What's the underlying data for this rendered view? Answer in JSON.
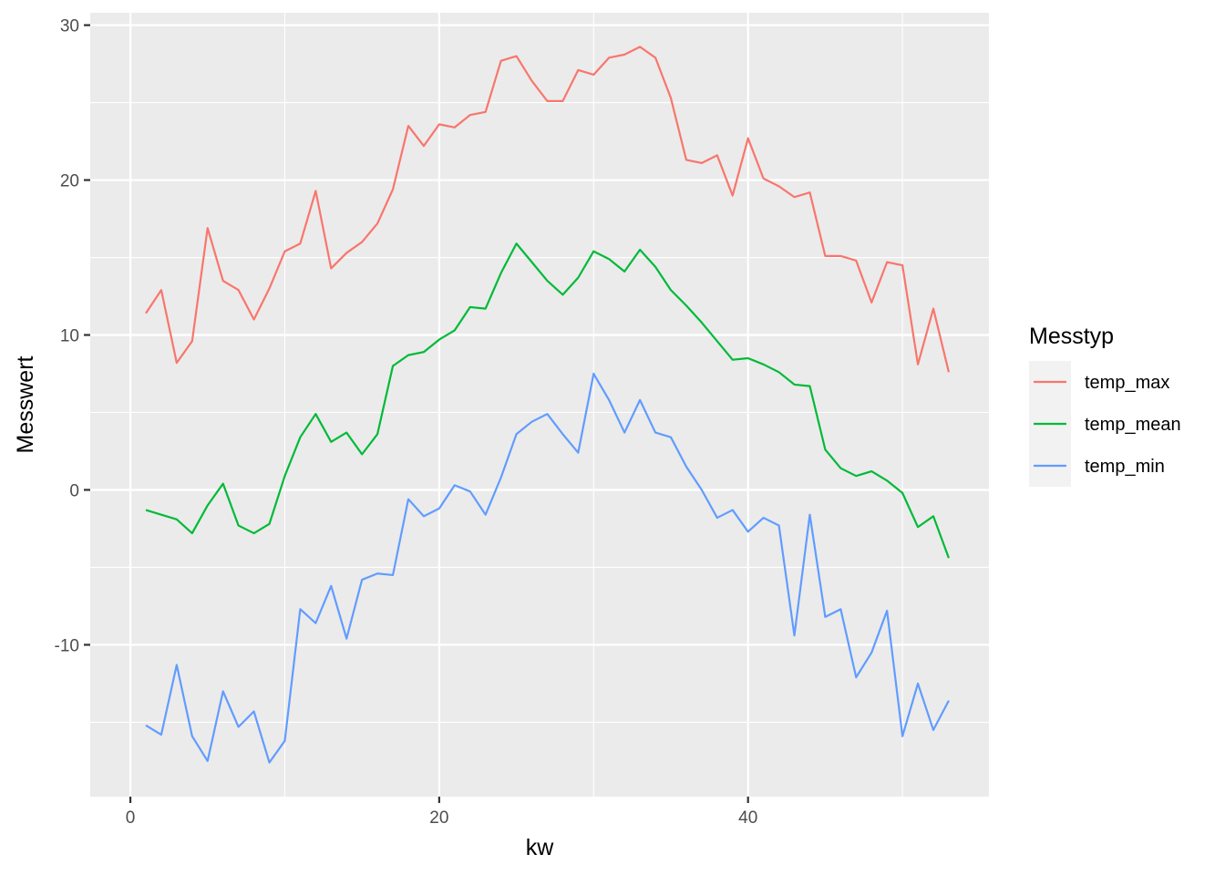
{
  "chart_data": {
    "type": "line",
    "xlabel": "kw",
    "ylabel": "Messwert",
    "xlim": [
      -2.6,
      55.6
    ],
    "ylim": [
      -19.8,
      30.8
    ],
    "x_ticks": [
      0,
      20,
      40
    ],
    "y_ticks": [
      -10,
      0,
      10,
      20,
      30
    ],
    "x_tick_labels": [
      "0",
      "20",
      "40"
    ],
    "y_tick_labels": [
      "-10",
      "0",
      "10",
      "20",
      "30"
    ],
    "grid": true,
    "legend": {
      "title": "Messtyp",
      "position": "right"
    },
    "x": [
      1,
      2,
      3,
      4,
      5,
      6,
      7,
      8,
      9,
      10,
      11,
      12,
      13,
      14,
      15,
      16,
      17,
      18,
      19,
      20,
      21,
      22,
      23,
      24,
      25,
      26,
      27,
      28,
      29,
      30,
      31,
      32,
      33,
      34,
      35,
      36,
      37,
      38,
      39,
      40,
      41,
      42,
      43,
      44,
      45,
      46,
      47,
      48,
      49,
      50,
      51,
      52,
      53
    ],
    "series": [
      {
        "name": "temp_max",
        "color": "#F8766D",
        "values": [
          11.4,
          12.9,
          8.2,
          9.6,
          16.9,
          13.5,
          12.9,
          11.0,
          13.0,
          15.4,
          15.9,
          19.3,
          14.3,
          15.3,
          16.0,
          17.2,
          19.4,
          23.5,
          22.2,
          23.6,
          23.4,
          24.2,
          24.4,
          27.7,
          28.0,
          26.4,
          25.1,
          25.1,
          27.1,
          26.8,
          27.9,
          28.1,
          28.6,
          27.9,
          25.3,
          21.3,
          21.1,
          21.6,
          19.0,
          22.7,
          20.1,
          19.6,
          18.9,
          19.2,
          15.1,
          15.1,
          14.8,
          12.1,
          14.7,
          14.5,
          8.1,
          11.7,
          7.6
        ]
      },
      {
        "name": "temp_mean",
        "color": "#00BA38",
        "values": [
          -1.3,
          -1.6,
          -1.9,
          -2.8,
          -1.0,
          0.4,
          -2.3,
          -2.8,
          -2.2,
          0.9,
          3.4,
          4.9,
          3.1,
          3.7,
          2.3,
          3.6,
          8.0,
          8.7,
          8.9,
          9.7,
          10.3,
          11.8,
          11.7,
          14.0,
          15.9,
          14.7,
          13.5,
          12.6,
          13.7,
          15.4,
          14.9,
          14.1,
          15.5,
          14.4,
          12.9,
          11.9,
          10.8,
          9.6,
          8.4,
          8.5,
          8.1,
          7.6,
          6.8,
          6.7,
          2.6,
          1.4,
          0.9,
          1.2,
          0.6,
          -0.2,
          -2.4,
          -1.7,
          -4.4
        ]
      },
      {
        "name": "temp_min",
        "color": "#619CFF",
        "values": [
          -15.2,
          -15.8,
          -11.3,
          -15.9,
          -17.5,
          -13.0,
          -15.3,
          -14.3,
          -17.6,
          -16.2,
          -7.7,
          -8.6,
          -6.2,
          -9.6,
          -5.8,
          -5.4,
          -5.5,
          -0.6,
          -1.7,
          -1.2,
          0.3,
          -0.1,
          -1.6,
          0.8,
          3.6,
          4.4,
          4.9,
          3.6,
          2.4,
          7.5,
          5.8,
          3.7,
          5.8,
          3.7,
          3.4,
          1.5,
          0.0,
          -1.8,
          -1.3,
          -2.7,
          -1.8,
          -2.3,
          -9.4,
          -1.6,
          -8.2,
          -7.7,
          -12.1,
          -10.5,
          -7.8,
          -15.9,
          -12.5,
          -15.5,
          -13.6
        ]
      }
    ]
  }
}
